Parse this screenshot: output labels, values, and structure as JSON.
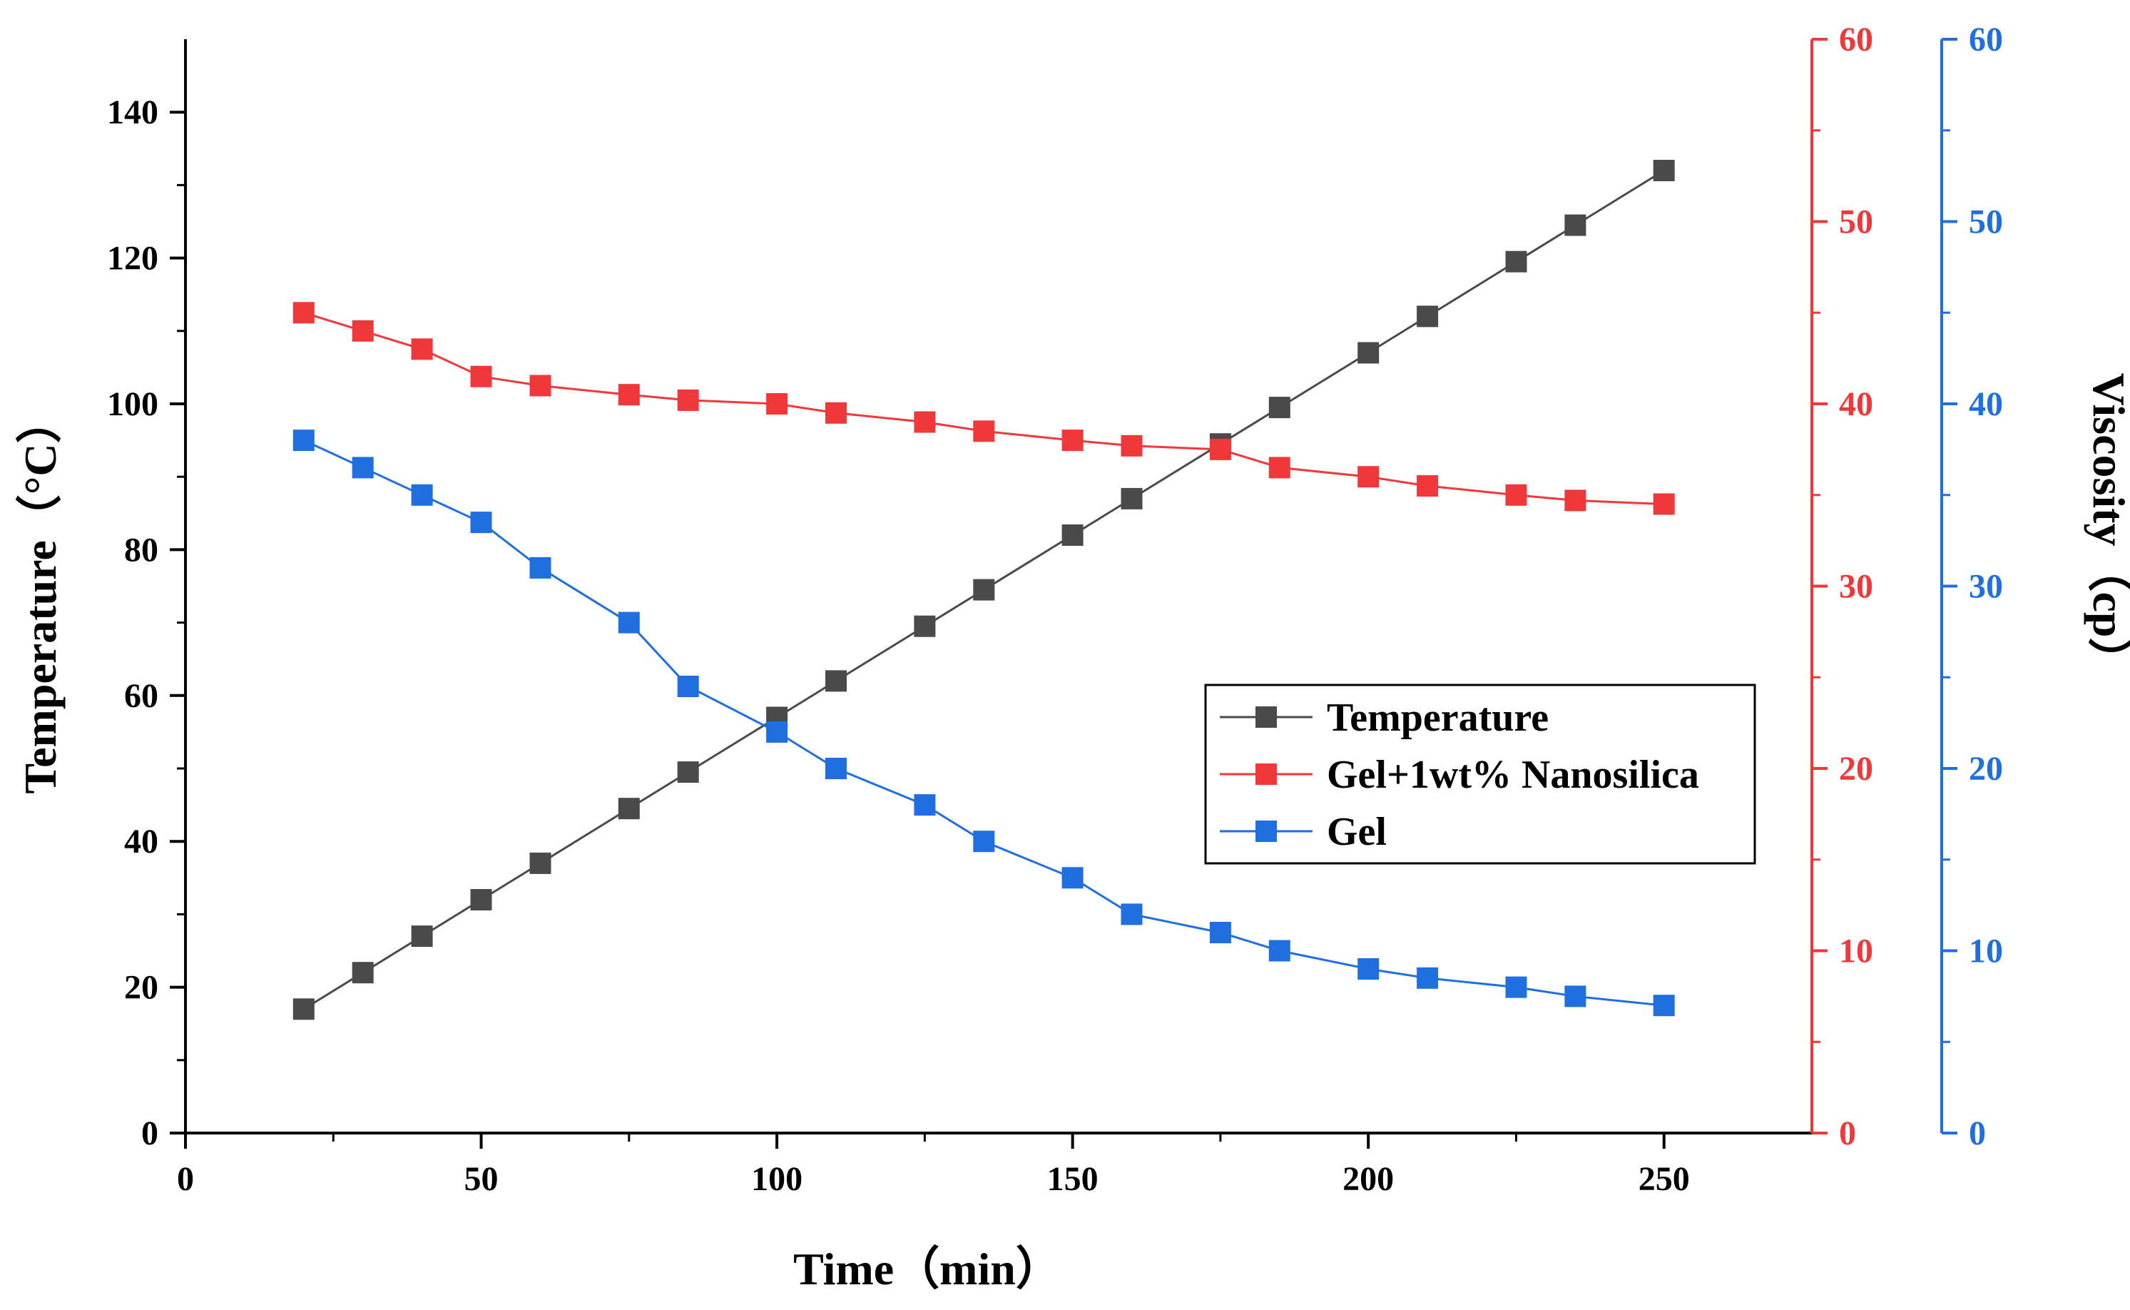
{
  "chart_data": {
    "type": "line",
    "title": "",
    "xlabel": "Time（min）",
    "ylabel_left": "Temperature（°C）",
    "ylabel_right": "Viscosity（cp）",
    "xlim": [
      0,
      275
    ],
    "xticks": [
      0,
      50,
      100,
      150,
      200,
      250
    ],
    "ylim_left": [
      0,
      150
    ],
    "yticks_left": [
      0,
      20,
      40,
      60,
      80,
      100,
      120,
      140
    ],
    "ylim_right_red": [
      0,
      60
    ],
    "yticks_right_red": [
      0,
      10,
      20,
      30,
      40,
      50,
      60
    ],
    "ylim_right_blue": [
      0,
      60
    ],
    "yticks_right_blue": [
      0,
      10,
      20,
      30,
      40,
      50,
      60
    ],
    "legend_position": "center-right",
    "colors": {
      "temperature": "#4a4a4a",
      "nanosilica": "#f0373a",
      "gel": "#1f6fe0",
      "axis": "#000000"
    },
    "series": [
      {
        "name": "Temperature",
        "axis": "left",
        "color": "#4a4a4a",
        "x": [
          20,
          30,
          40,
          50,
          60,
          75,
          85,
          100,
          110,
          125,
          135,
          150,
          160,
          175,
          185,
          200,
          210,
          225,
          235,
          250
        ],
        "values": [
          17,
          22,
          27,
          32,
          37,
          44.5,
          49.5,
          57,
          62,
          69.5,
          74.5,
          82,
          87,
          94.5,
          99.5,
          107,
          112,
          119.5,
          124.5,
          132
        ]
      },
      {
        "name": "Gel+1wt% Nanosilica",
        "axis": "right_red",
        "color": "#f0373a",
        "x": [
          20,
          30,
          40,
          50,
          60,
          75,
          85,
          100,
          110,
          125,
          135,
          150,
          160,
          175,
          185,
          200,
          210,
          225,
          235,
          250
        ],
        "values": [
          45,
          44,
          43,
          41.5,
          41,
          40.5,
          40.2,
          40,
          39.5,
          39,
          38.5,
          38,
          37.7,
          37.5,
          36.5,
          36,
          35.5,
          35,
          34.7,
          34.5
        ]
      },
      {
        "name": "Gel",
        "axis": "right_blue",
        "color": "#1f6fe0",
        "x": [
          20,
          30,
          40,
          50,
          60,
          75,
          85,
          100,
          110,
          125,
          135,
          150,
          160,
          175,
          185,
          200,
          210,
          225,
          235,
          250
        ],
        "values": [
          38,
          36.5,
          35,
          33.5,
          31,
          28,
          24.5,
          22,
          20,
          18,
          16,
          14,
          12,
          11,
          10,
          9,
          8.5,
          8,
          7.5,
          7
        ]
      }
    ]
  }
}
